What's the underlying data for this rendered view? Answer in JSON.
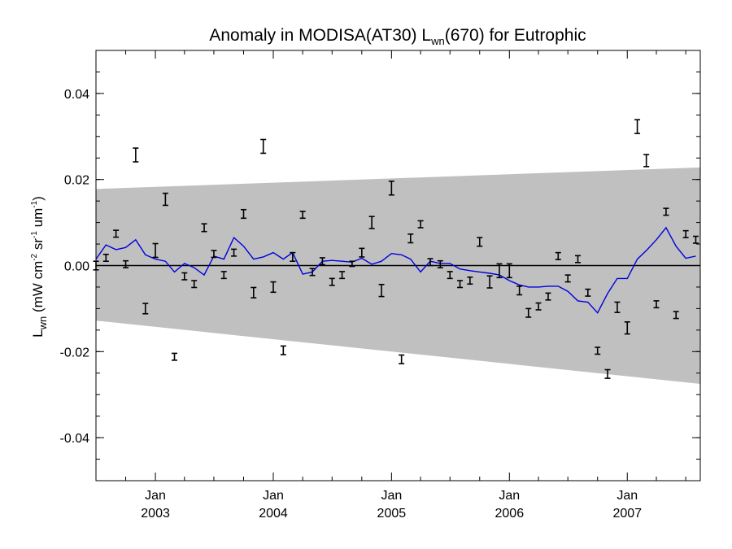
{
  "chart_data": {
    "type": "line",
    "title": {
      "prefix": "Anomaly in MODISA(AT30) L",
      "subscript": "wn",
      "suffix": "(670) for Eutrophic"
    },
    "ylabel": {
      "main": "L",
      "sub": "wn",
      "units_open": " (mW cm",
      "exp1": "-2",
      "units_mid": " sr",
      "exp2": "-1",
      "units_mid2": " um",
      "exp3": "-1",
      "units_close": ")"
    },
    "xlim": [
      "2002-07-01",
      "2007-08-15"
    ],
    "ylim": [
      -0.05,
      0.05
    ],
    "y_ticks": [
      -0.04,
      -0.02,
      0.0,
      0.02,
      0.04
    ],
    "y_tick_labels": [
      "-0.04",
      "-0.02",
      "0.00",
      "0.02",
      "0.04"
    ],
    "x_ticks": [
      {
        "date": "2003-01-01",
        "month": "Jan",
        "year": "2003"
      },
      {
        "date": "2004-01-01",
        "month": "Jan",
        "year": "2004"
      },
      {
        "date": "2005-01-01",
        "month": "Jan",
        "year": "2005"
      },
      {
        "date": "2006-01-01",
        "month": "Jan",
        "year": "2006"
      },
      {
        "date": "2007-01-01",
        "month": "Jan",
        "year": "2007"
      }
    ],
    "shaded_band": {
      "start": {
        "date": "2002-07-01",
        "lower": -0.0128,
        "upper": 0.0178
      },
      "end": {
        "date": "2007-08-15",
        "lower": -0.0275,
        "upper": 0.0228
      },
      "color": "#c0c0c0"
    },
    "zero_line": 0.0,
    "error_bar_series": {
      "color": "#000000",
      "points": [
        {
          "x": "2002-07-01",
          "y": 0.0,
          "err": 0.001
        },
        {
          "x": "2002-08-01",
          "y": 0.0018,
          "err": 0.0008
        },
        {
          "x": "2002-09-01",
          "y": 0.0074,
          "err": 0.0008
        },
        {
          "x": "2002-10-01",
          "y": 0.0003,
          "err": 0.0008
        },
        {
          "x": "2002-11-01",
          "y": 0.0257,
          "err": 0.0016
        },
        {
          "x": "2002-12-01",
          "y": -0.01,
          "err": 0.0012
        },
        {
          "x": "2003-01-01",
          "y": 0.0035,
          "err": 0.0016
        },
        {
          "x": "2003-02-01",
          "y": 0.0154,
          "err": 0.0014
        },
        {
          "x": "2003-03-01",
          "y": -0.0212,
          "err": 0.0008
        },
        {
          "x": "2003-04-01",
          "y": -0.0025,
          "err": 0.0008
        },
        {
          "x": "2003-05-01",
          "y": -0.0043,
          "err": 0.0008
        },
        {
          "x": "2003-06-01",
          "y": 0.0088,
          "err": 0.0009
        },
        {
          "x": "2003-07-01",
          "y": 0.0027,
          "err": 0.0008
        },
        {
          "x": "2003-08-01",
          "y": -0.0022,
          "err": 0.0008
        },
        {
          "x": "2003-09-01",
          "y": 0.003,
          "err": 0.0008
        },
        {
          "x": "2003-10-01",
          "y": 0.012,
          "err": 0.001
        },
        {
          "x": "2003-11-01",
          "y": -0.0063,
          "err": 0.0012
        },
        {
          "x": "2003-12-01",
          "y": 0.0277,
          "err": 0.0016
        },
        {
          "x": "2004-01-01",
          "y": -0.005,
          "err": 0.0012
        },
        {
          "x": "2004-02-01",
          "y": -0.0197,
          "err": 0.001
        },
        {
          "x": "2004-03-01",
          "y": 0.002,
          "err": 0.001
        },
        {
          "x": "2004-04-01",
          "y": 0.0118,
          "err": 0.0008
        },
        {
          "x": "2004-05-01",
          "y": -0.0015,
          "err": 0.0008
        },
        {
          "x": "2004-06-01",
          "y": 0.001,
          "err": 0.0008
        },
        {
          "x": "2004-07-01",
          "y": -0.0038,
          "err": 0.0008
        },
        {
          "x": "2004-08-01",
          "y": -0.0022,
          "err": 0.0008
        },
        {
          "x": "2004-09-01",
          "y": 0.0004,
          "err": 0.0006
        },
        {
          "x": "2004-10-01",
          "y": 0.003,
          "err": 0.001
        },
        {
          "x": "2004-11-01",
          "y": 0.01,
          "err": 0.0014
        },
        {
          "x": "2004-12-01",
          "y": -0.0058,
          "err": 0.0014
        },
        {
          "x": "2005-01-01",
          "y": 0.018,
          "err": 0.0016
        },
        {
          "x": "2005-02-01",
          "y": -0.0218,
          "err": 0.001
        },
        {
          "x": "2005-03-01",
          "y": 0.0063,
          "err": 0.001
        },
        {
          "x": "2005-04-01",
          "y": 0.0096,
          "err": 0.0008
        },
        {
          "x": "2005-05-01",
          "y": 0.0008,
          "err": 0.0008
        },
        {
          "x": "2005-06-01",
          "y": 0.0003,
          "err": 0.0008
        },
        {
          "x": "2005-07-01",
          "y": -0.0022,
          "err": 0.0008
        },
        {
          "x": "2005-08-01",
          "y": -0.0043,
          "err": 0.0008
        },
        {
          "x": "2005-09-01",
          "y": -0.0035,
          "err": 0.0008
        },
        {
          "x": "2005-10-01",
          "y": 0.0055,
          "err": 0.001
        },
        {
          "x": "2005-11-01",
          "y": -0.0038,
          "err": 0.0014
        },
        {
          "x": "2005-12-01",
          "y": -0.0012,
          "err": 0.0016
        },
        {
          "x": "2006-01-01",
          "y": -0.0012,
          "err": 0.0016
        },
        {
          "x": "2006-02-01",
          "y": -0.0058,
          "err": 0.001
        },
        {
          "x": "2006-03-01",
          "y": -0.011,
          "err": 0.001
        },
        {
          "x": "2006-04-01",
          "y": -0.0095,
          "err": 0.0008
        },
        {
          "x": "2006-05-01",
          "y": -0.0072,
          "err": 0.0008
        },
        {
          "x": "2006-06-01",
          "y": 0.0022,
          "err": 0.0008
        },
        {
          "x": "2006-07-01",
          "y": -0.003,
          "err": 0.0008
        },
        {
          "x": "2006-08-01",
          "y": 0.0015,
          "err": 0.0008
        },
        {
          "x": "2006-09-01",
          "y": -0.0063,
          "err": 0.0008
        },
        {
          "x": "2006-10-01",
          "y": -0.0198,
          "err": 0.0008
        },
        {
          "x": "2006-11-01",
          "y": -0.0252,
          "err": 0.001
        },
        {
          "x": "2006-12-01",
          "y": -0.0097,
          "err": 0.0012
        },
        {
          "x": "2007-01-01",
          "y": -0.0145,
          "err": 0.0014
        },
        {
          "x": "2007-02-01",
          "y": 0.0323,
          "err": 0.0016
        },
        {
          "x": "2007-03-01",
          "y": 0.0244,
          "err": 0.0014
        },
        {
          "x": "2007-04-01",
          "y": -0.009,
          "err": 0.0008
        },
        {
          "x": "2007-05-01",
          "y": 0.0125,
          "err": 0.0008
        },
        {
          "x": "2007-06-01",
          "y": -0.0115,
          "err": 0.0008
        },
        {
          "x": "2007-07-01",
          "y": 0.0073,
          "err": 0.0008
        },
        {
          "x": "2007-08-01",
          "y": 0.006,
          "err": 0.0008
        }
      ]
    },
    "line_series": {
      "color": "#0000e0",
      "points": [
        {
          "x": "2002-07-01",
          "y": 0.0015
        },
        {
          "x": "2002-08-01",
          "y": 0.0048
        },
        {
          "x": "2002-09-01",
          "y": 0.0037
        },
        {
          "x": "2002-10-01",
          "y": 0.0042
        },
        {
          "x": "2002-11-01",
          "y": 0.006
        },
        {
          "x": "2002-12-01",
          "y": 0.0025
        },
        {
          "x": "2003-01-01",
          "y": 0.0015
        },
        {
          "x": "2003-02-01",
          "y": 0.001
        },
        {
          "x": "2003-03-01",
          "y": -0.0015
        },
        {
          "x": "2003-04-01",
          "y": 0.0005
        },
        {
          "x": "2003-05-01",
          "y": -0.0005
        },
        {
          "x": "2003-06-01",
          "y": -0.0022
        },
        {
          "x": "2003-07-01",
          "y": 0.0022
        },
        {
          "x": "2003-08-01",
          "y": 0.0015
        },
        {
          "x": "2003-09-01",
          "y": 0.0065
        },
        {
          "x": "2003-10-01",
          "y": 0.0045
        },
        {
          "x": "2003-11-01",
          "y": 0.0015
        },
        {
          "x": "2003-12-01",
          "y": 0.002
        },
        {
          "x": "2004-01-01",
          "y": 0.003
        },
        {
          "x": "2004-02-01",
          "y": 0.0015
        },
        {
          "x": "2004-03-01",
          "y": 0.003
        },
        {
          "x": "2004-04-01",
          "y": -0.002
        },
        {
          "x": "2004-05-01",
          "y": -0.0015
        },
        {
          "x": "2004-06-01",
          "y": 0.001
        },
        {
          "x": "2004-07-01",
          "y": 0.0012
        },
        {
          "x": "2004-08-01",
          "y": 0.001
        },
        {
          "x": "2004-09-01",
          "y": 0.0008
        },
        {
          "x": "2004-10-01",
          "y": 0.0017
        },
        {
          "x": "2004-11-01",
          "y": 0.0003
        },
        {
          "x": "2004-12-01",
          "y": 0.001
        },
        {
          "x": "2005-01-01",
          "y": 0.0028
        },
        {
          "x": "2005-02-01",
          "y": 0.0025
        },
        {
          "x": "2005-03-01",
          "y": 0.0015
        },
        {
          "x": "2005-04-01",
          "y": -0.0015
        },
        {
          "x": "2005-05-01",
          "y": 0.001
        },
        {
          "x": "2005-06-01",
          "y": 0.0005
        },
        {
          "x": "2005-07-01",
          "y": 0.0005
        },
        {
          "x": "2005-08-01",
          "y": -0.0008
        },
        {
          "x": "2005-09-01",
          "y": -0.0012
        },
        {
          "x": "2005-10-01",
          "y": -0.0015
        },
        {
          "x": "2005-11-01",
          "y": -0.0018
        },
        {
          "x": "2005-12-01",
          "y": -0.0022
        },
        {
          "x": "2006-01-01",
          "y": -0.0035
        },
        {
          "x": "2006-02-01",
          "y": -0.0045
        },
        {
          "x": "2006-03-01",
          "y": -0.005
        },
        {
          "x": "2006-04-01",
          "y": -0.005
        },
        {
          "x": "2006-05-01",
          "y": -0.0048
        },
        {
          "x": "2006-06-01",
          "y": -0.0048
        },
        {
          "x": "2006-07-01",
          "y": -0.006
        },
        {
          "x": "2006-08-01",
          "y": -0.0082
        },
        {
          "x": "2006-09-01",
          "y": -0.0085
        },
        {
          "x": "2006-10-01",
          "y": -0.011
        },
        {
          "x": "2006-11-01",
          "y": -0.0065
        },
        {
          "x": "2006-12-01",
          "y": -0.003
        },
        {
          "x": "2007-01-01",
          "y": -0.003
        },
        {
          "x": "2007-02-01",
          "y": 0.0015
        },
        {
          "x": "2007-03-01",
          "y": 0.0035
        },
        {
          "x": "2007-04-01",
          "y": 0.006
        },
        {
          "x": "2007-05-01",
          "y": 0.0088
        },
        {
          "x": "2007-06-01",
          "y": 0.0045
        },
        {
          "x": "2007-07-01",
          "y": 0.0017
        },
        {
          "x": "2007-08-01",
          "y": 0.0022
        }
      ]
    }
  }
}
